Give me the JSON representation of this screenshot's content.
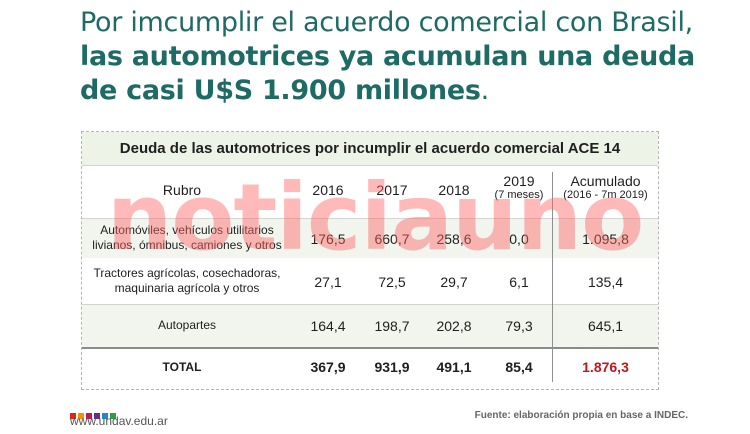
{
  "headline": {
    "light": "Por imcumplir el acuerdo comercial con Brasil,",
    "bold": "las automotrices ya acumulan una deuda de casi U$S 1.900 millones",
    "end": "."
  },
  "table": {
    "title": "Deuda de las automotrices por incumplir el acuerdo comercial ACE 14",
    "headers": {
      "rubro": "Rubro",
      "y2016": "2016",
      "y2017": "2017",
      "y2018": "2018",
      "y2019": "2019",
      "y2019_note": "(7 meses)",
      "acum": "Acumulado",
      "acum_note": "(2016 - 7m 2019)"
    },
    "rows": [
      {
        "rubro_l1": "Automóviles, vehículos utilitarios",
        "rubro_l2": "livianos, ómnibus, camiones y otros",
        "v2016": "176,5",
        "v2017": "660,7",
        "v2018": "258,6",
        "v2019": "0,0",
        "acum": "1.095,8"
      },
      {
        "rubro_l1": "Tractores agrícolas, cosechadoras,",
        "rubro_l2": "maquinaria agrícola y otros",
        "v2016": "27,1",
        "v2017": "72,5",
        "v2018": "29,7",
        "v2019": "6,1",
        "acum": "135,4"
      },
      {
        "rubro_l1": "Autopartes",
        "rubro_l2": "",
        "v2016": "164,4",
        "v2017": "198,7",
        "v2018": "202,8",
        "v2019": "79,3",
        "acum": "645,1"
      }
    ],
    "total": {
      "label": "TOTAL",
      "v2016": "367,9",
      "v2017": "931,9",
      "v2018": "491,1",
      "v2019": "85,4",
      "acum": "1.876,3"
    }
  },
  "watermark": "noticiauno",
  "footer": {
    "logo_url": "www.undav.edu.ar",
    "logo_colors": [
      "#e1251b",
      "#f39200",
      "#c2185b",
      "#6b2c91",
      "#1e88c9",
      "#2e9e44"
    ],
    "source": "Fuente: elaboración propia en base a INDEC."
  },
  "colors": {
    "headline": "#1d6b64",
    "total_acum": "#c0161b",
    "row_shade": "#f1f5ed"
  }
}
